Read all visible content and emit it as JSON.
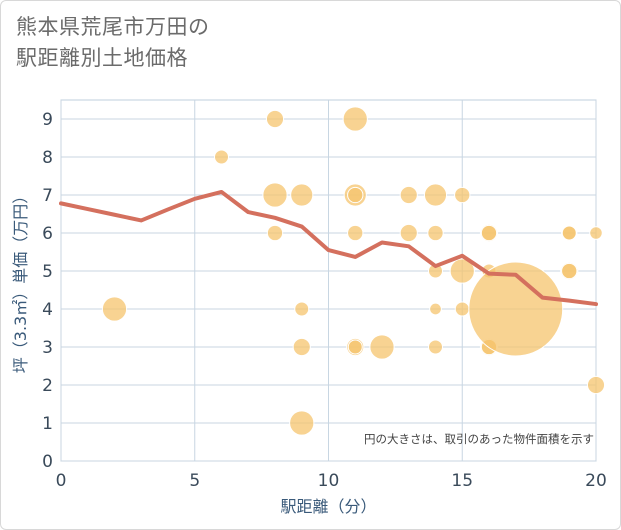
{
  "title_line1": "熊本県荒尾市万田の",
  "title_line2": "駅距離別土地価格",
  "chart_data": {
    "type": "scatter",
    "title": "熊本県荒尾市万田の駅距離別土地価格",
    "xlabel": "駅距離（分）",
    "ylabel": "坪（3.3㎡）単価（万円）",
    "xlim": [
      0,
      20
    ],
    "ylim": [
      0,
      9.5
    ],
    "xticks": [
      0,
      5,
      10,
      15,
      20
    ],
    "yticks": [
      0,
      1,
      2,
      3,
      4,
      5,
      6,
      7,
      8,
      9
    ],
    "grid": true,
    "note": "円の大きさは、取引のあった物件面積を示す",
    "bubble_color": "#f5c46e",
    "line_color": "#d4705e",
    "bubbles": [
      {
        "x": 2,
        "y": 4,
        "size": 3
      },
      {
        "x": 6,
        "y": 8,
        "size": 1
      },
      {
        "x": 8,
        "y": 9,
        "size": 1.5
      },
      {
        "x": 8,
        "y": 7,
        "size": 3
      },
      {
        "x": 8,
        "y": 6,
        "size": 1.2
      },
      {
        "x": 9,
        "y": 7,
        "size": 2.5
      },
      {
        "x": 9,
        "y": 4,
        "size": 1
      },
      {
        "x": 9,
        "y": 3,
        "size": 1.5
      },
      {
        "x": 9,
        "y": 1,
        "size": 3
      },
      {
        "x": 11,
        "y": 9,
        "size": 3
      },
      {
        "x": 11,
        "y": 7,
        "size": 2.5
      },
      {
        "x": 11,
        "y": 7,
        "size": 1.2
      },
      {
        "x": 11,
        "y": 6,
        "size": 1.2
      },
      {
        "x": 11,
        "y": 3,
        "size": 1.5
      },
      {
        "x": 11,
        "y": 3,
        "size": 1
      },
      {
        "x": 12,
        "y": 3,
        "size": 3
      },
      {
        "x": 13,
        "y": 7,
        "size": 1.5
      },
      {
        "x": 13,
        "y": 6,
        "size": 1.5
      },
      {
        "x": 14,
        "y": 7,
        "size": 2.5
      },
      {
        "x": 14,
        "y": 6,
        "size": 1.2
      },
      {
        "x": 14,
        "y": 5,
        "size": 1
      },
      {
        "x": 14,
        "y": 4,
        "size": 0.7
      },
      {
        "x": 14,
        "y": 3,
        "size": 1
      },
      {
        "x": 15,
        "y": 7,
        "size": 1.2
      },
      {
        "x": 15,
        "y": 5,
        "size": 3
      },
      {
        "x": 15,
        "y": 4,
        "size": 1
      },
      {
        "x": 16,
        "y": 6,
        "size": 1.5
      },
      {
        "x": 16,
        "y": 6,
        "size": 1.2
      },
      {
        "x": 16,
        "y": 5,
        "size": 1
      },
      {
        "x": 16,
        "y": 3,
        "size": 1.5
      },
      {
        "x": 16,
        "y": 3,
        "size": 1.2
      },
      {
        "x": 17,
        "y": 4,
        "size": 45
      },
      {
        "x": 19,
        "y": 6,
        "size": 1.2
      },
      {
        "x": 19,
        "y": 6,
        "size": 1
      },
      {
        "x": 19,
        "y": 5,
        "size": 1.5
      },
      {
        "x": 19,
        "y": 5,
        "size": 1.2
      },
      {
        "x": 20,
        "y": 6,
        "size": 0.8
      },
      {
        "x": 20,
        "y": 2,
        "size": 1.5
      }
    ],
    "trend_line": {
      "x": [
        0,
        1,
        2,
        3,
        4,
        5,
        6,
        7,
        8,
        9,
        10,
        11,
        12,
        13,
        14,
        15,
        16,
        17,
        18,
        19,
        20
      ],
      "y": [
        6.78,
        6.63,
        6.48,
        6.33,
        6.62,
        6.9,
        7.08,
        6.55,
        6.4,
        6.17,
        5.55,
        5.37,
        5.75,
        5.65,
        5.13,
        5.4,
        4.93,
        4.9,
        4.3,
        4.22,
        4.13
      ]
    }
  }
}
